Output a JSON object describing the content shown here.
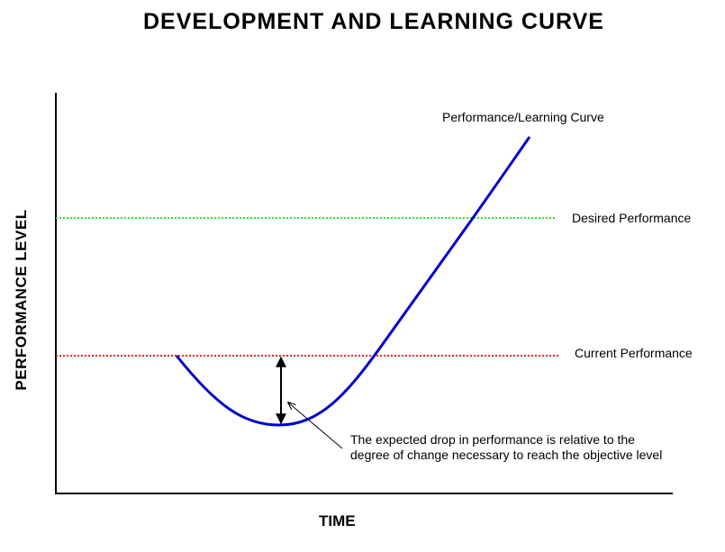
{
  "title": "DEVELOPMENT AND LEARNING CURVE",
  "y_axis_label": "PERFORMANCE LEVEL",
  "x_axis_label": "TIME",
  "labels": {
    "curve": "Performance/Learning Curve",
    "desired": "Desired Performance",
    "current": "Current Performance",
    "annotation_line1": "The expected drop in performance is relative to the",
    "annotation_line2": "degree of change necessary to reach the objective level"
  },
  "colors": {
    "curve": "#0000cc",
    "desired": "#33dd33",
    "current": "#ee2222",
    "axis": "#000000"
  }
}
